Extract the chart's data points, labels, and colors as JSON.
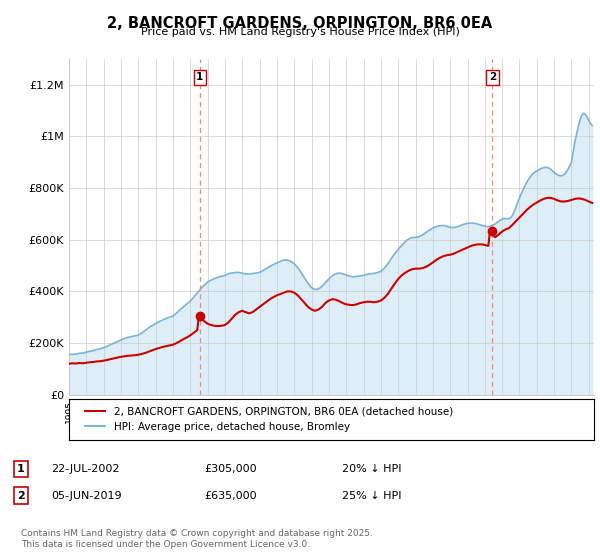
{
  "title": "2, BANCROFT GARDENS, ORPINGTON, BR6 0EA",
  "subtitle": "Price paid vs. HM Land Registry's House Price Index (HPI)",
  "ylim": [
    0,
    1300000
  ],
  "yticks": [
    0,
    200000,
    400000,
    600000,
    800000,
    1000000,
    1200000
  ],
  "ytick_labels": [
    "£0",
    "£200K",
    "£400K",
    "£600K",
    "£800K",
    "£1M",
    "£1.2M"
  ],
  "hpi_color": "#7ab4d8",
  "hpi_fill_color": "#ddeef8",
  "price_color": "#cc0000",
  "marker1_year": 2002.55,
  "marker1_price": 305000,
  "marker2_year": 2019.43,
  "marker2_price": 635000,
  "legend_label1": "2, BANCROFT GARDENS, ORPINGTON, BR6 0EA (detached house)",
  "legend_label2": "HPI: Average price, detached house, Bromley",
  "note1_label": "1",
  "note1_date": "22-JUL-2002",
  "note1_price": "£305,000",
  "note1_pct": "20% ↓ HPI",
  "note2_label": "2",
  "note2_date": "05-JUN-2019",
  "note2_price": "£635,000",
  "note2_pct": "25% ↓ HPI",
  "footnote": "Contains HM Land Registry data © Crown copyright and database right 2025.\nThis data is licensed under the Open Government Licence v3.0.",
  "hpi_data": [
    [
      1995.0,
      155000
    ],
    [
      1995.1,
      157000
    ],
    [
      1995.2,
      156000
    ],
    [
      1995.3,
      158000
    ],
    [
      1995.4,
      157000
    ],
    [
      1995.5,
      159000
    ],
    [
      1995.6,
      160000
    ],
    [
      1995.7,
      162000
    ],
    [
      1995.8,
      161000
    ],
    [
      1995.9,
      163000
    ],
    [
      1996.0,
      165000
    ],
    [
      1996.1,
      167000
    ],
    [
      1996.2,
      168000
    ],
    [
      1996.3,
      170000
    ],
    [
      1996.4,
      171000
    ],
    [
      1996.5,
      173000
    ],
    [
      1996.6,
      175000
    ],
    [
      1996.7,
      177000
    ],
    [
      1996.8,
      178000
    ],
    [
      1996.9,
      180000
    ],
    [
      1997.0,
      182000
    ],
    [
      1997.1,
      185000
    ],
    [
      1997.2,
      188000
    ],
    [
      1997.3,
      191000
    ],
    [
      1997.4,
      194000
    ],
    [
      1997.5,
      197000
    ],
    [
      1997.6,
      200000
    ],
    [
      1997.7,
      203000
    ],
    [
      1997.8,
      206000
    ],
    [
      1997.9,
      209000
    ],
    [
      1998.0,
      212000
    ],
    [
      1998.1,
      215000
    ],
    [
      1998.2,
      218000
    ],
    [
      1998.3,
      220000
    ],
    [
      1998.4,
      222000
    ],
    [
      1998.5,
      224000
    ],
    [
      1998.6,
      225000
    ],
    [
      1998.7,
      227000
    ],
    [
      1998.8,
      228000
    ],
    [
      1998.9,
      229000
    ],
    [
      1999.0,
      231000
    ],
    [
      1999.1,
      235000
    ],
    [
      1999.2,
      239000
    ],
    [
      1999.3,
      244000
    ],
    [
      1999.4,
      249000
    ],
    [
      1999.5,
      254000
    ],
    [
      1999.6,
      259000
    ],
    [
      1999.7,
      264000
    ],
    [
      1999.8,
      268000
    ],
    [
      1999.9,
      272000
    ],
    [
      2000.0,
      276000
    ],
    [
      2000.1,
      280000
    ],
    [
      2000.2,
      283000
    ],
    [
      2000.3,
      286000
    ],
    [
      2000.4,
      289000
    ],
    [
      2000.5,
      292000
    ],
    [
      2000.6,
      295000
    ],
    [
      2000.7,
      298000
    ],
    [
      2000.8,
      300000
    ],
    [
      2000.9,
      302000
    ],
    [
      2001.0,
      305000
    ],
    [
      2001.1,
      310000
    ],
    [
      2001.2,
      316000
    ],
    [
      2001.3,
      322000
    ],
    [
      2001.4,
      328000
    ],
    [
      2001.5,
      334000
    ],
    [
      2001.6,
      340000
    ],
    [
      2001.7,
      346000
    ],
    [
      2001.8,
      352000
    ],
    [
      2001.9,
      357000
    ],
    [
      2002.0,
      363000
    ],
    [
      2002.1,
      370000
    ],
    [
      2002.2,
      378000
    ],
    [
      2002.3,
      386000
    ],
    [
      2002.4,
      394000
    ],
    [
      2002.5,
      402000
    ],
    [
      2002.6,
      410000
    ],
    [
      2002.7,
      418000
    ],
    [
      2002.8,
      424000
    ],
    [
      2002.9,
      430000
    ],
    [
      2003.0,
      436000
    ],
    [
      2003.1,
      440000
    ],
    [
      2003.2,
      444000
    ],
    [
      2003.3,
      447000
    ],
    [
      2003.4,
      450000
    ],
    [
      2003.5,
      452000
    ],
    [
      2003.6,
      455000
    ],
    [
      2003.7,
      457000
    ],
    [
      2003.8,
      459000
    ],
    [
      2003.9,
      460000
    ],
    [
      2004.0,
      462000
    ],
    [
      2004.1,
      465000
    ],
    [
      2004.2,
      468000
    ],
    [
      2004.3,
      470000
    ],
    [
      2004.4,
      471000
    ],
    [
      2004.5,
      472000
    ],
    [
      2004.6,
      473000
    ],
    [
      2004.7,
      474000
    ],
    [
      2004.8,
      473000
    ],
    [
      2004.9,
      472000
    ],
    [
      2005.0,
      470000
    ],
    [
      2005.1,
      469000
    ],
    [
      2005.2,
      468000
    ],
    [
      2005.3,
      467000
    ],
    [
      2005.4,
      467000
    ],
    [
      2005.5,
      468000
    ],
    [
      2005.6,
      469000
    ],
    [
      2005.7,
      470000
    ],
    [
      2005.8,
      471000
    ],
    [
      2005.9,
      472000
    ],
    [
      2006.0,
      474000
    ],
    [
      2006.1,
      477000
    ],
    [
      2006.2,
      481000
    ],
    [
      2006.3,
      485000
    ],
    [
      2006.4,
      489000
    ],
    [
      2006.5,
      493000
    ],
    [
      2006.6,
      497000
    ],
    [
      2006.7,
      501000
    ],
    [
      2006.8,
      504000
    ],
    [
      2006.9,
      507000
    ],
    [
      2007.0,
      510000
    ],
    [
      2007.1,
      513000
    ],
    [
      2007.2,
      516000
    ],
    [
      2007.3,
      519000
    ],
    [
      2007.4,
      521000
    ],
    [
      2007.5,
      522000
    ],
    [
      2007.6,
      521000
    ],
    [
      2007.7,
      519000
    ],
    [
      2007.8,
      516000
    ],
    [
      2007.9,
      512000
    ],
    [
      2008.0,
      507000
    ],
    [
      2008.1,
      500000
    ],
    [
      2008.2,
      492000
    ],
    [
      2008.3,
      483000
    ],
    [
      2008.4,
      473000
    ],
    [
      2008.5,
      462000
    ],
    [
      2008.6,
      451000
    ],
    [
      2008.7,
      440000
    ],
    [
      2008.8,
      430000
    ],
    [
      2008.9,
      422000
    ],
    [
      2009.0,
      415000
    ],
    [
      2009.1,
      410000
    ],
    [
      2009.2,
      408000
    ],
    [
      2009.3,
      408000
    ],
    [
      2009.4,
      410000
    ],
    [
      2009.5,
      414000
    ],
    [
      2009.6,
      420000
    ],
    [
      2009.7,
      427000
    ],
    [
      2009.8,
      434000
    ],
    [
      2009.9,
      441000
    ],
    [
      2010.0,
      448000
    ],
    [
      2010.1,
      455000
    ],
    [
      2010.2,
      460000
    ],
    [
      2010.3,
      465000
    ],
    [
      2010.4,
      468000
    ],
    [
      2010.5,
      470000
    ],
    [
      2010.6,
      471000
    ],
    [
      2010.7,
      470000
    ],
    [
      2010.8,
      468000
    ],
    [
      2010.9,
      466000
    ],
    [
      2011.0,
      463000
    ],
    [
      2011.1,
      461000
    ],
    [
      2011.2,
      459000
    ],
    [
      2011.3,
      458000
    ],
    [
      2011.4,
      457000
    ],
    [
      2011.5,
      457000
    ],
    [
      2011.6,
      458000
    ],
    [
      2011.7,
      459000
    ],
    [
      2011.8,
      460000
    ],
    [
      2011.9,
      461000
    ],
    [
      2012.0,
      462000
    ],
    [
      2012.1,
      464000
    ],
    [
      2012.2,
      466000
    ],
    [
      2012.3,
      467000
    ],
    [
      2012.4,
      468000
    ],
    [
      2012.5,
      469000
    ],
    [
      2012.6,
      470000
    ],
    [
      2012.7,
      471000
    ],
    [
      2012.8,
      473000
    ],
    [
      2012.9,
      475000
    ],
    [
      2013.0,
      478000
    ],
    [
      2013.1,
      483000
    ],
    [
      2013.2,
      490000
    ],
    [
      2013.3,
      498000
    ],
    [
      2013.4,
      507000
    ],
    [
      2013.5,
      517000
    ],
    [
      2013.6,
      527000
    ],
    [
      2013.7,
      537000
    ],
    [
      2013.8,
      546000
    ],
    [
      2013.9,
      554000
    ],
    [
      2014.0,
      562000
    ],
    [
      2014.1,
      570000
    ],
    [
      2014.2,
      578000
    ],
    [
      2014.3,
      585000
    ],
    [
      2014.4,
      592000
    ],
    [
      2014.5,
      598000
    ],
    [
      2014.6,
      602000
    ],
    [
      2014.7,
      606000
    ],
    [
      2014.8,
      608000
    ],
    [
      2014.9,
      609000
    ],
    [
      2015.0,
      609000
    ],
    [
      2015.1,
      610000
    ],
    [
      2015.2,
      612000
    ],
    [
      2015.3,
      615000
    ],
    [
      2015.4,
      619000
    ],
    [
      2015.5,
      623000
    ],
    [
      2015.6,
      628000
    ],
    [
      2015.7,
      633000
    ],
    [
      2015.8,
      637000
    ],
    [
      2015.9,
      641000
    ],
    [
      2016.0,
      645000
    ],
    [
      2016.1,
      648000
    ],
    [
      2016.2,
      651000
    ],
    [
      2016.3,
      653000
    ],
    [
      2016.4,
      654000
    ],
    [
      2016.5,
      655000
    ],
    [
      2016.6,
      655000
    ],
    [
      2016.7,
      654000
    ],
    [
      2016.8,
      652000
    ],
    [
      2016.9,
      650000
    ],
    [
      2017.0,
      648000
    ],
    [
      2017.1,
      647000
    ],
    [
      2017.2,
      647000
    ],
    [
      2017.3,
      648000
    ],
    [
      2017.4,
      650000
    ],
    [
      2017.5,
      652000
    ],
    [
      2017.6,
      655000
    ],
    [
      2017.7,
      658000
    ],
    [
      2017.8,
      660000
    ],
    [
      2017.9,
      662000
    ],
    [
      2018.0,
      663000
    ],
    [
      2018.1,
      664000
    ],
    [
      2018.2,
      664000
    ],
    [
      2018.3,
      664000
    ],
    [
      2018.4,
      663000
    ],
    [
      2018.5,
      662000
    ],
    [
      2018.6,
      660000
    ],
    [
      2018.7,
      658000
    ],
    [
      2018.8,
      656000
    ],
    [
      2018.9,
      654000
    ],
    [
      2019.0,
      652000
    ],
    [
      2019.1,
      651000
    ],
    [
      2019.2,
      651000
    ],
    [
      2019.3,
      652000
    ],
    [
      2019.4,
      654000
    ],
    [
      2019.5,
      657000
    ],
    [
      2019.6,
      661000
    ],
    [
      2019.7,
      666000
    ],
    [
      2019.8,
      671000
    ],
    [
      2019.9,
      676000
    ],
    [
      2020.0,
      680000
    ],
    [
      2020.1,
      682000
    ],
    [
      2020.2,
      682000
    ],
    [
      2020.3,
      681000
    ],
    [
      2020.4,
      682000
    ],
    [
      2020.5,
      685000
    ],
    [
      2020.6,
      695000
    ],
    [
      2020.7,
      710000
    ],
    [
      2020.8,
      728000
    ],
    [
      2020.9,
      745000
    ],
    [
      2021.0,
      762000
    ],
    [
      2021.1,
      778000
    ],
    [
      2021.2,
      793000
    ],
    [
      2021.3,
      807000
    ],
    [
      2021.4,
      820000
    ],
    [
      2021.5,
      831000
    ],
    [
      2021.6,
      841000
    ],
    [
      2021.7,
      850000
    ],
    [
      2021.8,
      857000
    ],
    [
      2021.9,
      862000
    ],
    [
      2022.0,
      866000
    ],
    [
      2022.1,
      870000
    ],
    [
      2022.2,
      874000
    ],
    [
      2022.3,
      877000
    ],
    [
      2022.4,
      879000
    ],
    [
      2022.5,
      880000
    ],
    [
      2022.6,
      879000
    ],
    [
      2022.7,
      877000
    ],
    [
      2022.8,
      873000
    ],
    [
      2022.9,
      867000
    ],
    [
      2023.0,
      860000
    ],
    [
      2023.1,
      855000
    ],
    [
      2023.2,
      851000
    ],
    [
      2023.3,
      848000
    ],
    [
      2023.4,
      847000
    ],
    [
      2023.5,
      849000
    ],
    [
      2023.6,
      854000
    ],
    [
      2023.7,
      862000
    ],
    [
      2023.8,
      873000
    ],
    [
      2023.9,
      886000
    ],
    [
      2024.0,
      900000
    ],
    [
      2024.1,
      940000
    ],
    [
      2024.2,
      980000
    ],
    [
      2024.3,
      1010000
    ],
    [
      2024.4,
      1040000
    ],
    [
      2024.5,
      1065000
    ],
    [
      2024.6,
      1082000
    ],
    [
      2024.7,
      1090000
    ],
    [
      2024.8,
      1085000
    ],
    [
      2024.9,
      1075000
    ],
    [
      2025.0,
      1060000
    ],
    [
      2025.1,
      1050000
    ],
    [
      2025.2,
      1042000
    ]
  ],
  "price_data": [
    [
      1995.0,
      120000
    ],
    [
      1995.2,
      122000
    ],
    [
      1995.4,
      121000
    ],
    [
      1995.6,
      123000
    ],
    [
      1995.8,
      122000
    ],
    [
      1996.0,
      124000
    ],
    [
      1996.2,
      126000
    ],
    [
      1996.4,
      127000
    ],
    [
      1996.6,
      129000
    ],
    [
      1996.8,
      130000
    ],
    [
      1997.0,
      132000
    ],
    [
      1997.2,
      135000
    ],
    [
      1997.4,
      138000
    ],
    [
      1997.6,
      141000
    ],
    [
      1997.8,
      144000
    ],
    [
      1998.0,
      147000
    ],
    [
      1998.2,
      149000
    ],
    [
      1998.4,
      151000
    ],
    [
      1998.6,
      152000
    ],
    [
      1998.8,
      153000
    ],
    [
      1999.0,
      155000
    ],
    [
      1999.2,
      158000
    ],
    [
      1999.4,
      162000
    ],
    [
      1999.6,
      167000
    ],
    [
      1999.8,
      172000
    ],
    [
      2000.0,
      177000
    ],
    [
      2000.2,
      181000
    ],
    [
      2000.4,
      185000
    ],
    [
      2000.6,
      188000
    ],
    [
      2000.8,
      191000
    ],
    [
      2001.0,
      194000
    ],
    [
      2001.2,
      200000
    ],
    [
      2001.4,
      207000
    ],
    [
      2001.6,
      215000
    ],
    [
      2001.8,
      222000
    ],
    [
      2002.0,
      230000
    ],
    [
      2002.2,
      240000
    ],
    [
      2002.4,
      250000
    ],
    [
      2002.5,
      305000
    ],
    [
      2002.6,
      295000
    ],
    [
      2002.8,
      285000
    ],
    [
      2003.0,
      275000
    ],
    [
      2003.2,
      270000
    ],
    [
      2003.4,
      267000
    ],
    [
      2003.6,
      266000
    ],
    [
      2003.8,
      267000
    ],
    [
      2004.0,
      270000
    ],
    [
      2004.2,
      280000
    ],
    [
      2004.4,
      295000
    ],
    [
      2004.6,
      310000
    ],
    [
      2004.8,
      320000
    ],
    [
      2005.0,
      325000
    ],
    [
      2005.2,
      320000
    ],
    [
      2005.4,
      315000
    ],
    [
      2005.6,
      320000
    ],
    [
      2005.8,
      330000
    ],
    [
      2006.0,
      340000
    ],
    [
      2006.2,
      350000
    ],
    [
      2006.4,
      360000
    ],
    [
      2006.6,
      370000
    ],
    [
      2006.8,
      378000
    ],
    [
      2007.0,
      385000
    ],
    [
      2007.2,
      390000
    ],
    [
      2007.4,
      395000
    ],
    [
      2007.6,
      400000
    ],
    [
      2007.8,
      400000
    ],
    [
      2008.0,
      395000
    ],
    [
      2008.2,
      385000
    ],
    [
      2008.4,
      370000
    ],
    [
      2008.6,
      355000
    ],
    [
      2008.8,
      340000
    ],
    [
      2009.0,
      330000
    ],
    [
      2009.2,
      325000
    ],
    [
      2009.4,
      330000
    ],
    [
      2009.6,
      340000
    ],
    [
      2009.8,
      355000
    ],
    [
      2010.0,
      365000
    ],
    [
      2010.2,
      370000
    ],
    [
      2010.4,
      368000
    ],
    [
      2010.6,
      362000
    ],
    [
      2010.8,
      355000
    ],
    [
      2011.0,
      350000
    ],
    [
      2011.2,
      348000
    ],
    [
      2011.4,
      347000
    ],
    [
      2011.6,
      350000
    ],
    [
      2011.8,
      355000
    ],
    [
      2012.0,
      358000
    ],
    [
      2012.2,
      360000
    ],
    [
      2012.4,
      360000
    ],
    [
      2012.6,
      358000
    ],
    [
      2012.8,
      360000
    ],
    [
      2013.0,
      365000
    ],
    [
      2013.2,
      375000
    ],
    [
      2013.4,
      390000
    ],
    [
      2013.6,
      410000
    ],
    [
      2013.8,
      430000
    ],
    [
      2014.0,
      448000
    ],
    [
      2014.2,
      462000
    ],
    [
      2014.4,
      472000
    ],
    [
      2014.6,
      480000
    ],
    [
      2014.8,
      486000
    ],
    [
      2015.0,
      488000
    ],
    [
      2015.2,
      488000
    ],
    [
      2015.4,
      490000
    ],
    [
      2015.6,
      495000
    ],
    [
      2015.8,
      503000
    ],
    [
      2016.0,
      512000
    ],
    [
      2016.2,
      522000
    ],
    [
      2016.4,
      530000
    ],
    [
      2016.6,
      536000
    ],
    [
      2016.8,
      540000
    ],
    [
      2017.0,
      542000
    ],
    [
      2017.2,
      546000
    ],
    [
      2017.4,
      552000
    ],
    [
      2017.6,
      558000
    ],
    [
      2017.8,
      564000
    ],
    [
      2018.0,
      570000
    ],
    [
      2018.2,
      576000
    ],
    [
      2018.4,
      580000
    ],
    [
      2018.6,
      582000
    ],
    [
      2018.8,
      582000
    ],
    [
      2019.0,
      580000
    ],
    [
      2019.2,
      576000
    ],
    [
      2019.3,
      635000
    ],
    [
      2019.4,
      620000
    ],
    [
      2019.6,
      610000
    ],
    [
      2019.8,
      620000
    ],
    [
      2020.0,
      632000
    ],
    [
      2020.2,
      640000
    ],
    [
      2020.4,
      645000
    ],
    [
      2020.6,
      658000
    ],
    [
      2020.8,
      672000
    ],
    [
      2021.0,
      686000
    ],
    [
      2021.2,
      700000
    ],
    [
      2021.4,
      714000
    ],
    [
      2021.6,
      726000
    ],
    [
      2021.8,
      736000
    ],
    [
      2022.0,
      744000
    ],
    [
      2022.2,
      752000
    ],
    [
      2022.4,
      758000
    ],
    [
      2022.6,
      762000
    ],
    [
      2022.8,
      762000
    ],
    [
      2023.0,
      758000
    ],
    [
      2023.2,
      752000
    ],
    [
      2023.4,
      748000
    ],
    [
      2023.6,
      748000
    ],
    [
      2023.8,
      750000
    ],
    [
      2024.0,
      754000
    ],
    [
      2024.2,
      758000
    ],
    [
      2024.4,
      760000
    ],
    [
      2024.6,
      758000
    ],
    [
      2024.8,
      754000
    ],
    [
      2025.0,
      748000
    ],
    [
      2025.2,
      742000
    ]
  ]
}
